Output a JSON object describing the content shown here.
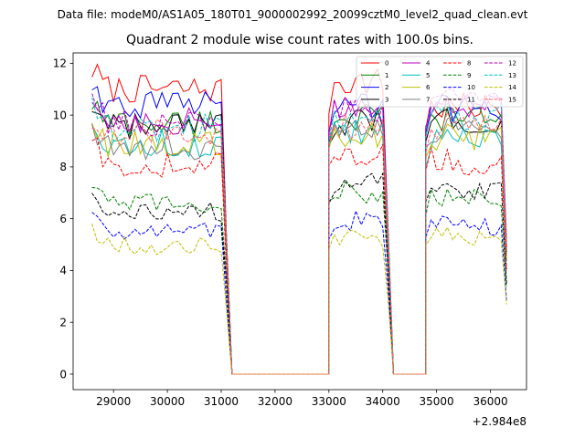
{
  "figure": {
    "suptitle": "Data file: modeM0/AS1A05_180T01_9000002992_20099cztM0_level2_quad_clean.evt"
  },
  "chart_data": {
    "type": "line",
    "title": "Quadrant 2 module wise count rates with 100.0s bins.",
    "xlabel": "",
    "ylabel": "",
    "x_offset_label": "+2.984e8",
    "xlim": [
      28250,
      36670
    ],
    "ylim": [
      -0.6,
      12.4
    ],
    "xticks": [
      29000,
      30000,
      31000,
      32000,
      33000,
      34000,
      35000,
      36000
    ],
    "yticks": [
      0,
      2,
      4,
      6,
      8,
      10,
      12
    ],
    "grid": false,
    "legend_placement": "top-right",
    "legend_columns": 4,
    "segments": [
      {
        "start": 28600,
        "end": 31100
      },
      {
        "start": 33000,
        "end": 34100
      },
      {
        "start": 34800,
        "end": 36300
      }
    ],
    "gap_value": 0,
    "series": [
      {
        "name": "0",
        "color": "#ff0000",
        "dash": "solid",
        "levels": [
          11.0,
          11.3,
          10.3
        ]
      },
      {
        "name": "1",
        "color": "#008000",
        "dash": "solid",
        "levels": [
          9.7,
          9.9,
          9.9
        ]
      },
      {
        "name": "2",
        "color": "#0000ff",
        "dash": "solid",
        "levels": [
          10.4,
          10.4,
          10.3
        ]
      },
      {
        "name": "3",
        "color": "#000000",
        "dash": "solid",
        "levels": [
          9.5,
          9.7,
          9.8
        ]
      },
      {
        "name": "4",
        "color": "#bf00bf",
        "dash": "solid",
        "levels": [
          9.8,
          10.1,
          10.2
        ]
      },
      {
        "name": "5",
        "color": "#00bfbf",
        "dash": "solid",
        "levels": [
          8.9,
          9.4,
          9.0
        ]
      },
      {
        "name": "6",
        "color": "#bfbf00",
        "dash": "solid",
        "levels": [
          8.9,
          9.3,
          9.2
        ]
      },
      {
        "name": "7",
        "color": "#808080",
        "dash": "solid",
        "levels": [
          8.8,
          9.6,
          9.4
        ]
      },
      {
        "name": "8",
        "color": "#ff0000",
        "dash": "dashed",
        "levels": [
          8.1,
          8.5,
          8.2
        ]
      },
      {
        "name": "9",
        "color": "#008000",
        "dash": "dashed",
        "levels": [
          6.6,
          7.0,
          6.8
        ]
      },
      {
        "name": "10",
        "color": "#0000ff",
        "dash": "dashed",
        "levels": [
          5.6,
          5.9,
          5.7
        ]
      },
      {
        "name": "11",
        "color": "#000000",
        "dash": "dashed",
        "levels": [
          6.3,
          7.4,
          7.0
        ]
      },
      {
        "name": "12",
        "color": "#bf00bf",
        "dash": "dashed",
        "levels": [
          9.7,
          10.2,
          10.5
        ]
      },
      {
        "name": "13",
        "color": "#00bfbf",
        "dash": "dashed",
        "levels": [
          9.5,
          9.9,
          10.0
        ]
      },
      {
        "name": "14",
        "color": "#bfbf00",
        "dash": "dashed",
        "levels": [
          5.0,
          5.3,
          5.3
        ]
      },
      {
        "name": "15",
        "color": "#ff6060",
        "dash": "dashed",
        "levels": [
          9.3,
          9.6,
          9.6
        ]
      }
    ]
  }
}
